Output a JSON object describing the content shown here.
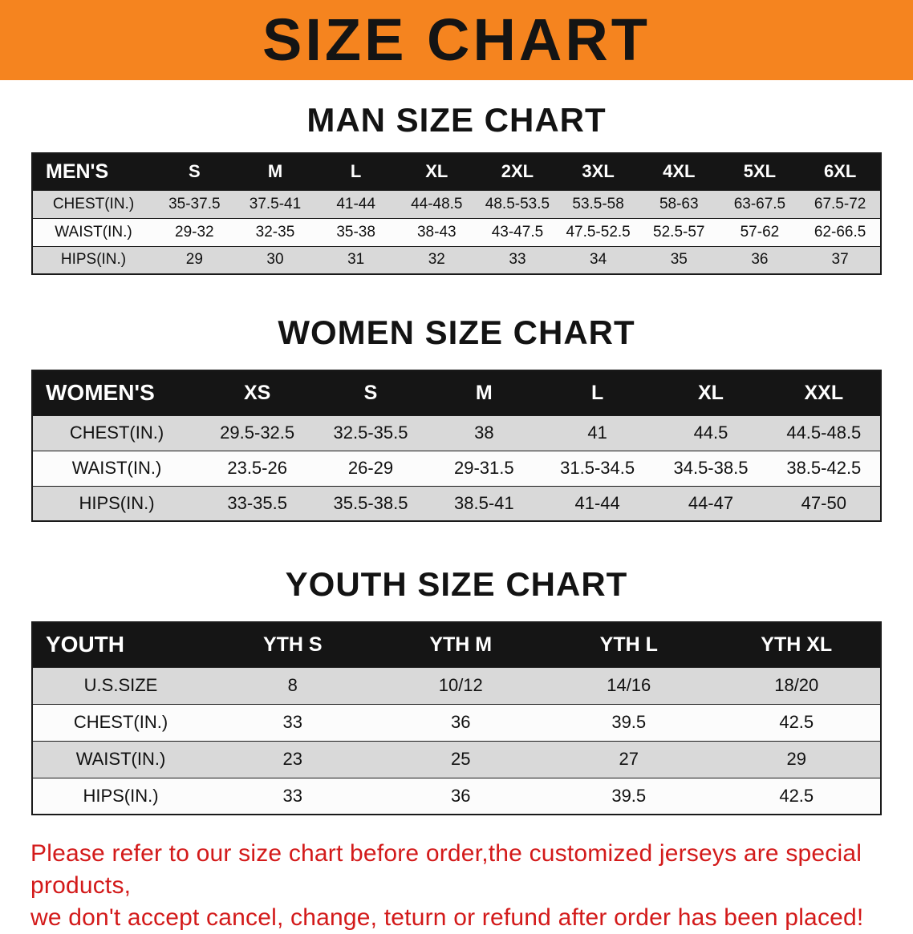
{
  "colors": {
    "banner_bg": "#f5841f",
    "header_bg": "#151515",
    "row_gray": "#d9d9d9",
    "row_white": "#fcfcfc",
    "border": "#1a1a1a",
    "disclaimer_red": "#d31a1a"
  },
  "banner": {
    "title": "SIZE CHART"
  },
  "sections": [
    {
      "id": "men",
      "heading": "MAN SIZE CHART",
      "table": {
        "header": [
          "MEN'S",
          "S",
          "M",
          "L",
          "XL",
          "2XL",
          "3XL",
          "4XL",
          "5XL",
          "6XL"
        ],
        "rows": [
          {
            "label": "CHEST(IN.)",
            "values": [
              "35-37.5",
              "37.5-41",
              "41-44",
              "44-48.5",
              "48.5-53.5",
              "53.5-58",
              "58-63",
              "63-67.5",
              "67.5-72"
            ]
          },
          {
            "label": "WAIST(IN.)",
            "values": [
              "29-32",
              "32-35",
              "35-38",
              "38-43",
              "43-47.5",
              "47.5-52.5",
              "52.5-57",
              "57-62",
              "62-66.5"
            ]
          },
          {
            "label": "HIPS(IN.)",
            "values": [
              "29",
              "30",
              "31",
              "32",
              "33",
              "34",
              "35",
              "36",
              "37"
            ]
          }
        ]
      }
    },
    {
      "id": "women",
      "heading": "WOMEN SIZE CHART",
      "table": {
        "header": [
          "WOMEN'S",
          "XS",
          "S",
          "M",
          "L",
          "XL",
          "XXL"
        ],
        "rows": [
          {
            "label": "CHEST(IN.)",
            "values": [
              "29.5-32.5",
              "32.5-35.5",
              "38",
              "41",
              "44.5",
              "44.5-48.5"
            ]
          },
          {
            "label": "WAIST(IN.)",
            "values": [
              "23.5-26",
              "26-29",
              "29-31.5",
              "31.5-34.5",
              "34.5-38.5",
              "38.5-42.5"
            ]
          },
          {
            "label": "HIPS(IN.)",
            "values": [
              "33-35.5",
              "35.5-38.5",
              "38.5-41",
              "41-44",
              "44-47",
              "47-50"
            ]
          }
        ]
      }
    },
    {
      "id": "youth",
      "heading": "YOUTH SIZE CHART",
      "table": {
        "header": [
          "YOUTH",
          "YTH S",
          "YTH M",
          "YTH L",
          "YTH XL"
        ],
        "rows": [
          {
            "label": "U.S.SIZE",
            "values": [
              "8",
              "10/12",
              "14/16",
              "18/20"
            ]
          },
          {
            "label": "CHEST(IN.)",
            "values": [
              "33",
              "36",
              "39.5",
              "42.5"
            ]
          },
          {
            "label": "WAIST(IN.)",
            "values": [
              "23",
              "25",
              "27",
              "29"
            ]
          },
          {
            "label": "HIPS(IN.)",
            "values": [
              "33",
              "36",
              "39.5",
              "42.5"
            ]
          }
        ]
      }
    }
  ],
  "disclaimer": {
    "line1": "Please refer to our size chart before order,the customized jerseys are special products,",
    "line2": "we don't accept cancel, change, teturn or refund after order has been placed!"
  }
}
